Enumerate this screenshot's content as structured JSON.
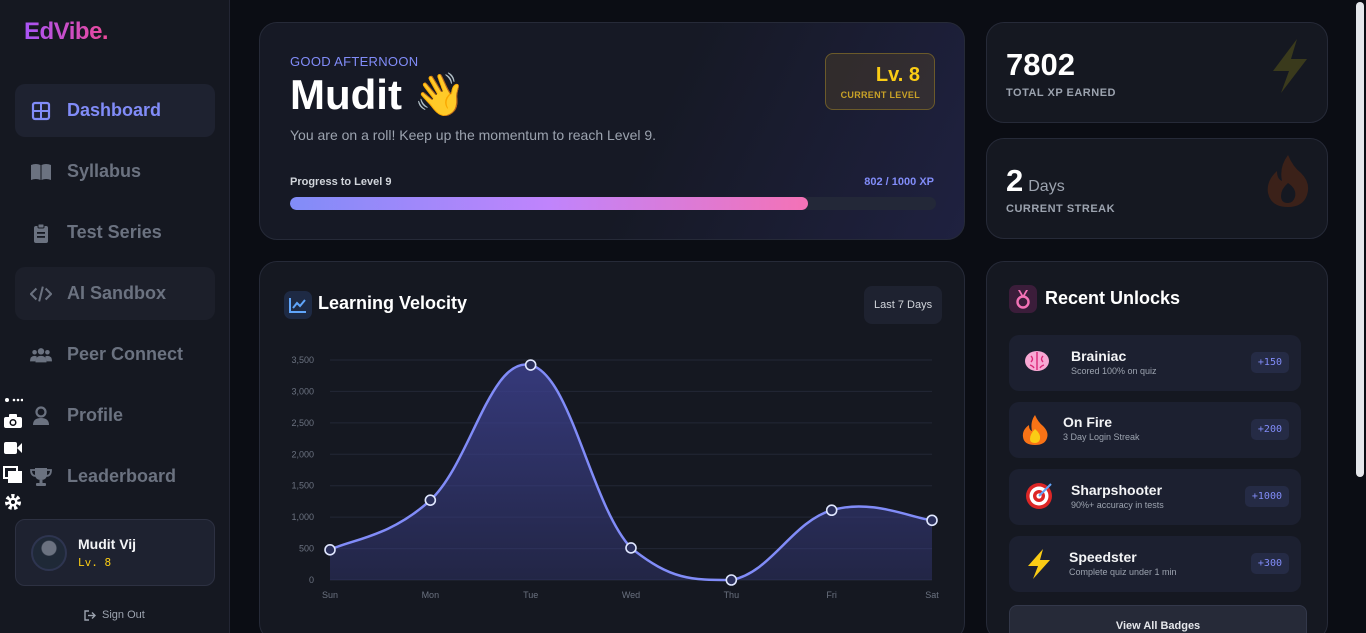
{
  "app": {
    "logo": "EdVibe."
  },
  "sidebar": {
    "items": [
      {
        "label": "Dashboard",
        "icon": "grid-icon",
        "active": true
      },
      {
        "label": "Syllabus",
        "icon": "book-icon"
      },
      {
        "label": "Test Series",
        "icon": "clipboard-icon"
      },
      {
        "label": "AI Sandbox",
        "icon": "code-icon"
      },
      {
        "label": "Peer Connect",
        "icon": "users-icon"
      },
      {
        "label": "Profile",
        "icon": "user-icon"
      },
      {
        "label": "Leaderboard",
        "icon": "trophy-icon"
      }
    ],
    "user": {
      "name": "Mudit Vij",
      "level": "Lv. 8"
    },
    "signout": "Sign Out"
  },
  "hero": {
    "greeting": "GOOD AFTERNOON",
    "name": "Mudit 👋",
    "subtitle": "You are on a roll! Keep up the momentum to reach Level 9.",
    "level_value": "Lv. 8",
    "level_caption": "CURRENT LEVEL",
    "progress_label": "Progress to Level 9",
    "progress_xp": "802 / 1000 XP",
    "progress_fraction": 0.802
  },
  "stats": {
    "xp": {
      "value": "7802",
      "label": "TOTAL XP EARNED"
    },
    "streak": {
      "value": "2",
      "unit": "Days",
      "label": "CURRENT STREAK"
    }
  },
  "velocity": {
    "title": "Learning Velocity",
    "range": "Last 7 Days"
  },
  "chart_data": {
    "type": "area",
    "categories": [
      "Sun",
      "Mon",
      "Tue",
      "Wed",
      "Thu",
      "Fri",
      "Sat"
    ],
    "values": [
      480,
      1270,
      3420,
      510,
      0,
      1110,
      950
    ],
    "ylim": [
      0,
      3500
    ],
    "yticks": [
      "0",
      "500",
      "1,000",
      "1,500",
      "2,000",
      "2,500",
      "3,000",
      "3,500"
    ],
    "grid": true,
    "colors": {
      "line": "#818cf8",
      "fill": "#3b3f8a"
    }
  },
  "unlocks": {
    "title": "Recent Unlocks",
    "badges": [
      {
        "emoji": "🧠",
        "name": "Brainiac",
        "desc": "Scored 100% on quiz",
        "xp": "+150"
      },
      {
        "emoji": "🔥",
        "name": "On Fire",
        "desc": "3 Day Login Streak",
        "xp": "+200"
      },
      {
        "emoji": "🎯",
        "name": "Sharpshooter",
        "desc": "90%+ accuracy in tests",
        "xp": "+1000"
      },
      {
        "emoji": "⚡",
        "name": "Speedster",
        "desc": "Complete quiz under 1 min",
        "xp": "+300"
      }
    ],
    "view_all": "View All Badges"
  }
}
